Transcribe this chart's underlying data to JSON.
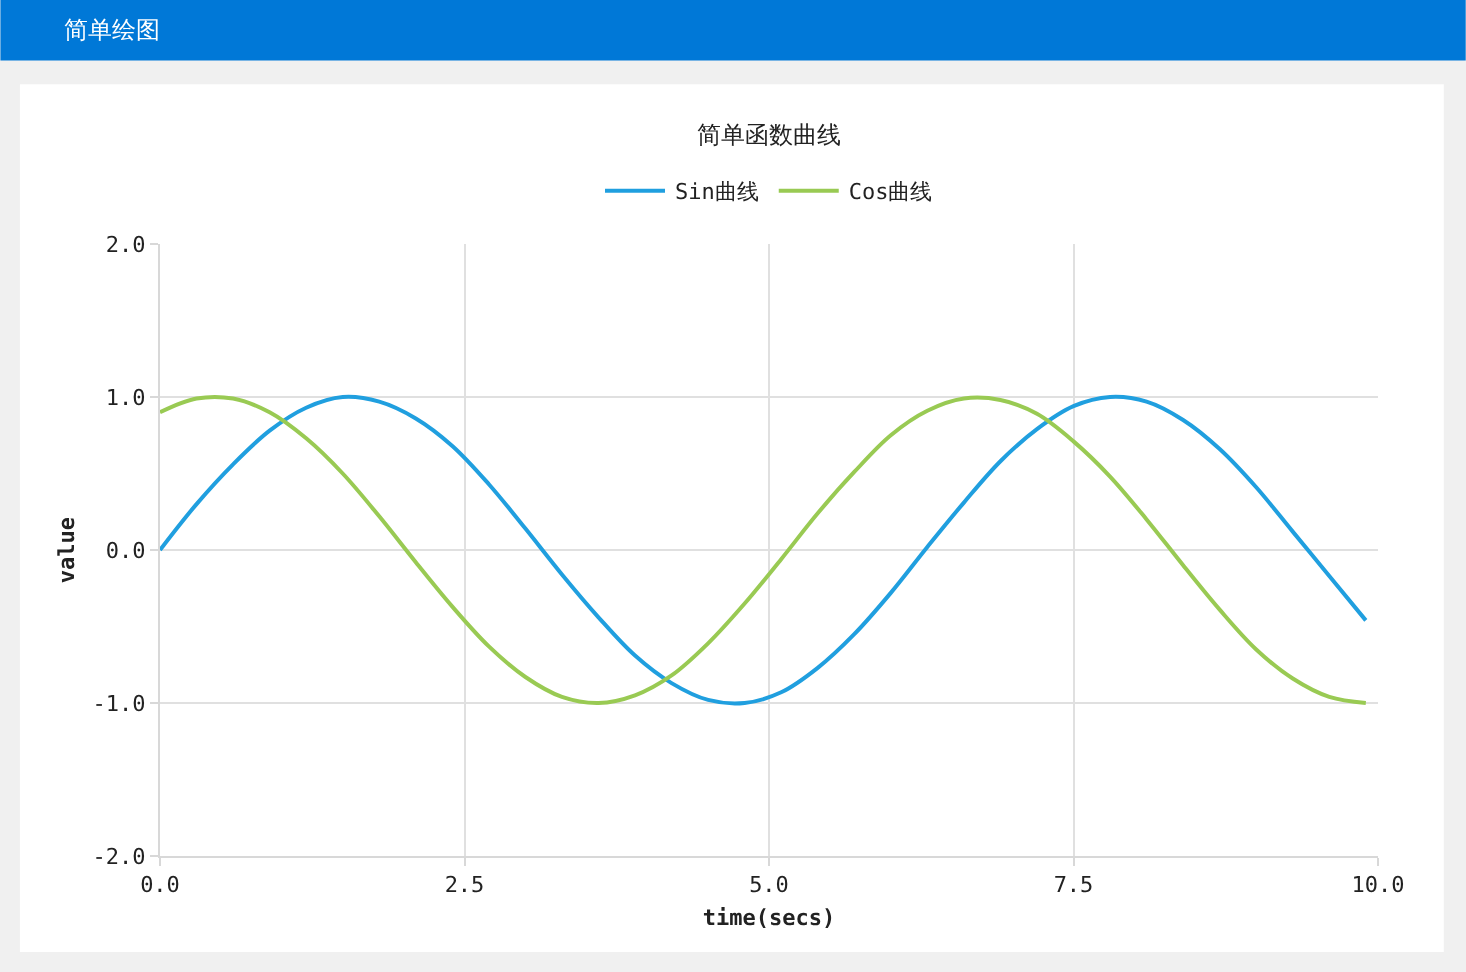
{
  "chart_data": {
    "type": "line",
    "title": "简单函数曲线",
    "xlabel": "time(secs)",
    "ylabel": "value",
    "annotations": [
      "简单绘图"
    ],
    "x": [
      0,
      0.3,
      0.6,
      0.9,
      1.2,
      1.5,
      1.8,
      2.1,
      2.4,
      2.7,
      3.0,
      3.3,
      3.6,
      3.9,
      4.2,
      4.5,
      4.8,
      5.1,
      5.4,
      5.7,
      6.0,
      6.3,
      6.6,
      6.9,
      7.2,
      7.5,
      7.8,
      8.1,
      8.4,
      8.7,
      9.0,
      9.3,
      9.6,
      9.9
    ],
    "series": [
      {
        "name": "Sin曲线",
        "color": "#209fdf",
        "values": [
          0,
          0.3,
          0.56,
          0.78,
          0.93,
          1.0,
          0.97,
          0.86,
          0.68,
          0.43,
          0.14,
          -0.16,
          -0.44,
          -0.69,
          -0.87,
          -0.98,
          -1.0,
          -0.93,
          -0.77,
          -0.55,
          -0.28,
          0.02,
          0.31,
          0.58,
          0.79,
          0.94,
          1.0,
          0.97,
          0.85,
          0.66,
          0.41,
          0.12,
          -0.17,
          -0.46
        ]
      },
      {
        "name": "Cos曲线",
        "color": "#99ca53",
        "values": [
          0.9,
          0.99,
          0.99,
          0.9,
          0.73,
          0.5,
          0.22,
          -0.08,
          -0.37,
          -0.63,
          -0.83,
          -0.96,
          -1.0,
          -0.95,
          -0.82,
          -0.61,
          -0.35,
          -0.06,
          0.24,
          0.51,
          0.75,
          0.91,
          0.99,
          0.98,
          0.89,
          0.71,
          0.48,
          0.2,
          -0.1,
          -0.39,
          -0.65,
          -0.84,
          -0.96,
          -1.0
        ]
      }
    ],
    "xlim": [
      0,
      10
    ],
    "xticks": [
      {
        "value": 0,
        "label": "0.0"
      },
      {
        "value": 2.5,
        "label": "2.5"
      },
      {
        "value": 5,
        "label": "5.0"
      },
      {
        "value": 7.5,
        "label": "7.5"
      },
      {
        "value": 10,
        "label": "10.0"
      }
    ],
    "ylim": [
      -2,
      2
    ],
    "yticks": [
      {
        "value": -2,
        "label": "-2.0"
      },
      {
        "value": -1,
        "label": "-1.0"
      },
      {
        "value": 0,
        "label": "0.0"
      },
      {
        "value": 1,
        "label": "1.0"
      },
      {
        "value": 2,
        "label": "2.0"
      }
    ],
    "grid": true,
    "legend": "top",
    "marker": "none",
    "line_style": "solid"
  }
}
